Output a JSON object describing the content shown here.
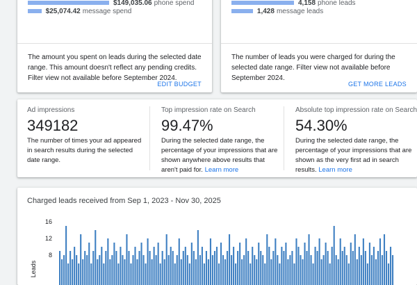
{
  "spend_card": {
    "bar_color": "#8ab0ee",
    "rows": [
      {
        "value": 149035.06,
        "value_label": "$149,035.06",
        "label": "phone spend"
      },
      {
        "value": 25074.42,
        "value_label": "$25,074.42",
        "label": "message spend"
      }
    ],
    "description": "The amount you spent on leads during the selected date range. This amount doesn't reflect any pending credits. Filter view not available before September 2024.",
    "button": "EDIT BUDGET"
  },
  "leads_card": {
    "bar_color": "#8ab0ee",
    "rows": [
      {
        "value": 4158,
        "value_label": "4,158",
        "label": "phone leads"
      },
      {
        "value": 1428,
        "value_label": "1,428",
        "label": "message leads"
      }
    ],
    "description": "The number of leads you were charged for during the selected date range. Filter view not available before September 2024.",
    "button": "GET MORE LEADS"
  },
  "metrics": [
    {
      "label": "Ad impressions",
      "value": "349182",
      "description": "The number of times your ad appeared in search results during the selected date range."
    },
    {
      "label": "Top impression rate on Search",
      "value": "99.47%",
      "description": "During the selected date range, the percentage of your impressions that are shown anywhere above results that aren't paid for.",
      "link": "Learn more"
    },
    {
      "label": "Absolute top impression rate on Search",
      "value": "54.30%",
      "description": "During the selected date range, the percentage of your impressions that are shown as the very first ad in search results.",
      "link": "Learn more"
    }
  ],
  "chart_data": {
    "type": "bar",
    "title": "Charged leads received from Sep 1, 2023 - Nov 30, 2025",
    "y_label": "Leads",
    "color": "#3f80c2",
    "ylim": [
      0,
      16
    ],
    "yticks": [
      8,
      12,
      16
    ],
    "values": [
      9,
      7,
      8,
      15,
      6,
      9,
      7,
      10,
      8,
      6,
      13,
      7,
      9,
      8,
      11,
      6,
      9,
      14,
      7,
      8,
      10,
      6,
      9,
      12,
      7,
      8,
      11,
      9,
      6,
      10,
      8,
      7,
      13,
      9,
      6,
      8,
      10,
      7,
      9,
      11,
      8,
      6,
      12,
      9,
      7,
      10,
      8,
      11,
      6,
      9,
      7,
      13,
      8,
      10,
      9,
      6,
      8,
      12,
      7,
      9,
      10,
      8,
      6,
      11,
      9,
      7,
      14,
      8,
      10,
      6,
      9,
      7,
      12,
      8,
      9,
      10,
      6,
      11,
      8,
      7,
      9,
      13,
      8,
      10,
      6,
      9,
      11,
      7,
      8,
      12,
      9,
      6,
      10,
      8,
      7,
      11,
      9,
      8,
      6,
      13,
      10,
      7,
      9,
      12,
      8,
      6,
      10,
      9,
      11,
      7,
      8,
      9,
      6,
      12,
      10,
      8,
      7,
      11,
      9,
      13,
      8,
      6,
      10,
      9,
      12,
      7,
      8,
      11,
      9,
      6,
      10,
      15,
      8,
      7,
      12,
      9,
      10,
      8,
      6,
      11,
      9,
      13,
      7,
      10,
      8,
      12,
      9,
      6,
      11,
      8,
      10,
      7,
      9,
      12,
      8,
      13,
      9,
      6,
      10,
      8
    ],
    "value_labels": null
  }
}
